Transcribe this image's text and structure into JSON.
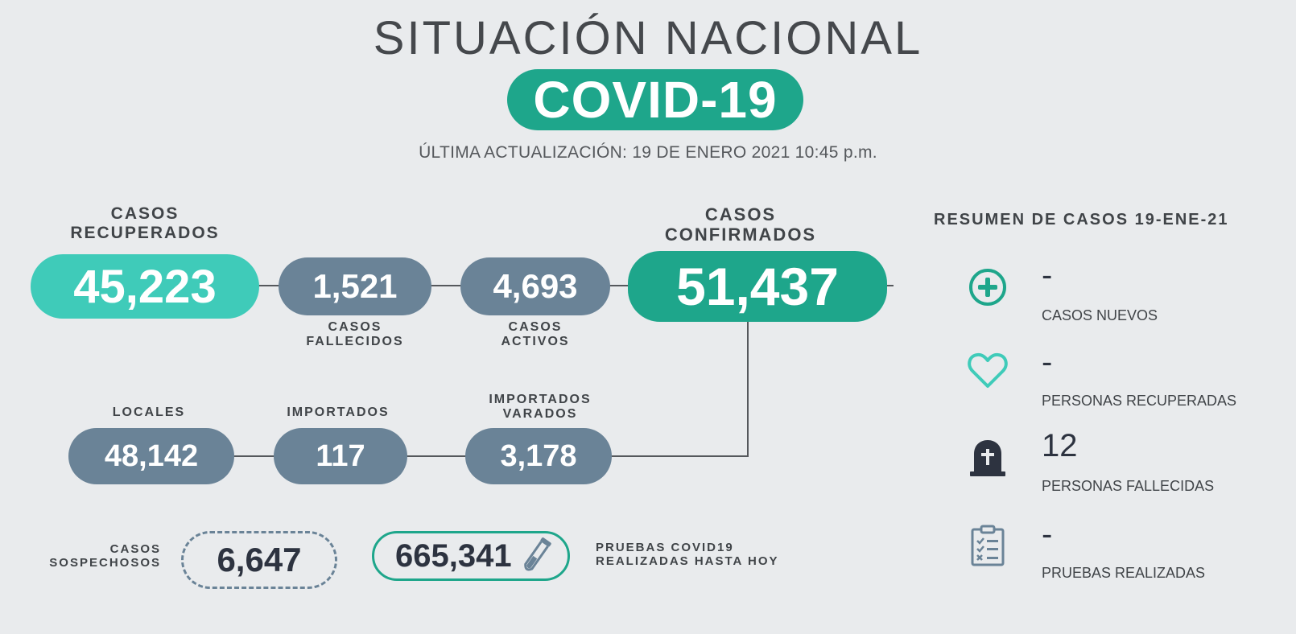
{
  "header": {
    "title": "SITUACIÓN NACIONAL",
    "badge": "COVID-19",
    "last_update": "ÚLTIMA ACTUALIZACIÓN: 19 DE ENERO 2021 10:45 p.m."
  },
  "top_row": {
    "recovered": {
      "label_line1": "CASOS",
      "label_line2": "RECUPERADOS",
      "value": "45,223"
    },
    "deceased": {
      "label_line1": "CASOS",
      "label_line2": "FALLECIDOS",
      "value": "1,521"
    },
    "active": {
      "label_line1": "CASOS",
      "label_line2": "ACTIVOS",
      "value": "4,693"
    },
    "confirmed": {
      "label_line1": "CASOS",
      "label_line2": "CONFIRMADOS",
      "value": "51,437"
    }
  },
  "middle_row": {
    "local": {
      "label": "LOCALES",
      "value": "48,142"
    },
    "imported": {
      "label": "IMPORTADOS",
      "value": "117"
    },
    "stranded": {
      "label_line1": "IMPORTADOS",
      "label_line2": "VARADOS",
      "value": "3,178"
    }
  },
  "bottom_row": {
    "suspected": {
      "label_line1": "CASOS",
      "label_line2": "SOSPECHOSOS",
      "value": "6,647"
    },
    "tests": {
      "value": "665,341",
      "label_line1": "PRUEBAS COVID19",
      "label_line2": "REALIZADAS HASTA HOY"
    }
  },
  "summary": {
    "title": "RESUMEN DE CASOS 19-ENE-21",
    "items": [
      {
        "icon": "plus-circle-icon",
        "value": "-",
        "label": "CASOS NUEVOS"
      },
      {
        "icon": "heart-icon",
        "value": "-",
        "label": "PERSONAS RECUPERADAS"
      },
      {
        "icon": "tombstone-icon",
        "value": "12",
        "label": "PERSONAS FALLECIDAS"
      },
      {
        "icon": "clipboard-icon",
        "value": "-",
        "label": "PRUEBAS REALIZADAS"
      }
    ]
  },
  "colors": {
    "teal": "#1ea68b",
    "light_teal": "#3fcbb9",
    "slate": "#6a8397",
    "background": "#e9ebed"
  }
}
